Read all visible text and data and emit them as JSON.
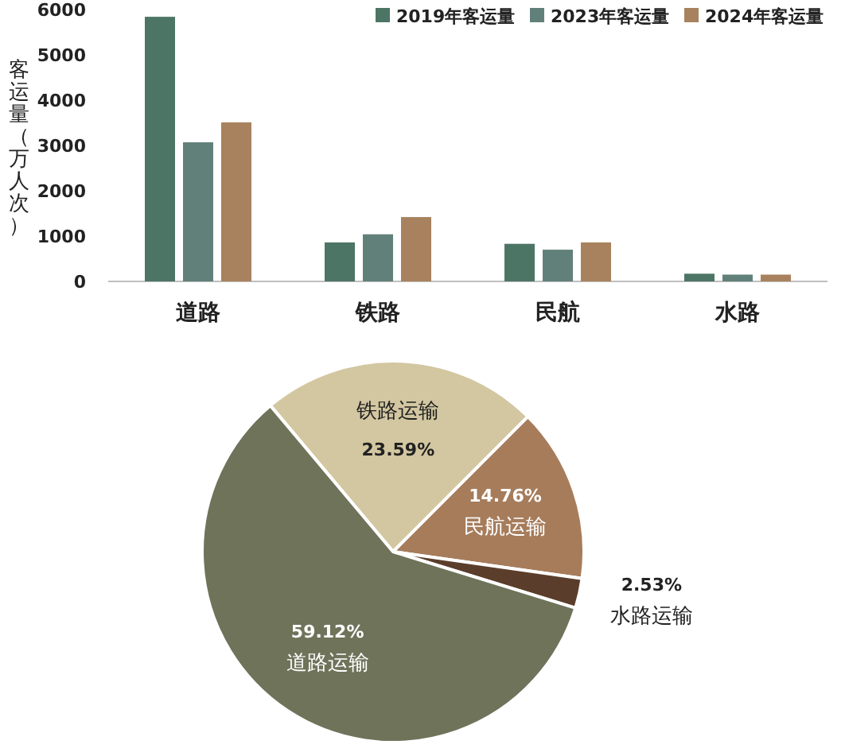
{
  "chart_data": [
    {
      "type": "bar",
      "ylabel": "客运量（万人次）",
      "categories": [
        "道路",
        "铁路",
        "民航",
        "水路"
      ],
      "series": [
        {
          "name": "2019年客运量",
          "color": "#4d7565",
          "values": [
            5840,
            860,
            830,
            170
          ]
        },
        {
          "name": "2023年客运量",
          "color": "#62807a",
          "values": [
            3070,
            1040,
            700,
            150
          ]
        },
        {
          "name": "2024年客运量",
          "color": "#a8825e",
          "values": [
            3510,
            1420,
            860,
            150
          ]
        }
      ],
      "ylim": [
        0,
        6000
      ],
      "yticks": [
        0,
        1000,
        2000,
        3000,
        4000,
        5000,
        6000
      ],
      "grid": false,
      "legend": "top right"
    },
    {
      "type": "pie",
      "categories": [
        "铁路运输",
        "民航运输",
        "水路运输",
        "道路运输"
      ],
      "values": [
        23.59,
        14.76,
        2.53,
        59.12
      ],
      "value_labels": [
        "23.59%",
        "14.76%",
        "2.53%",
        "59.12%"
      ],
      "colors": [
        "#d3c7a1",
        "#a67c5b",
        "#5a3e2b",
        "#6e735a"
      ]
    }
  ]
}
